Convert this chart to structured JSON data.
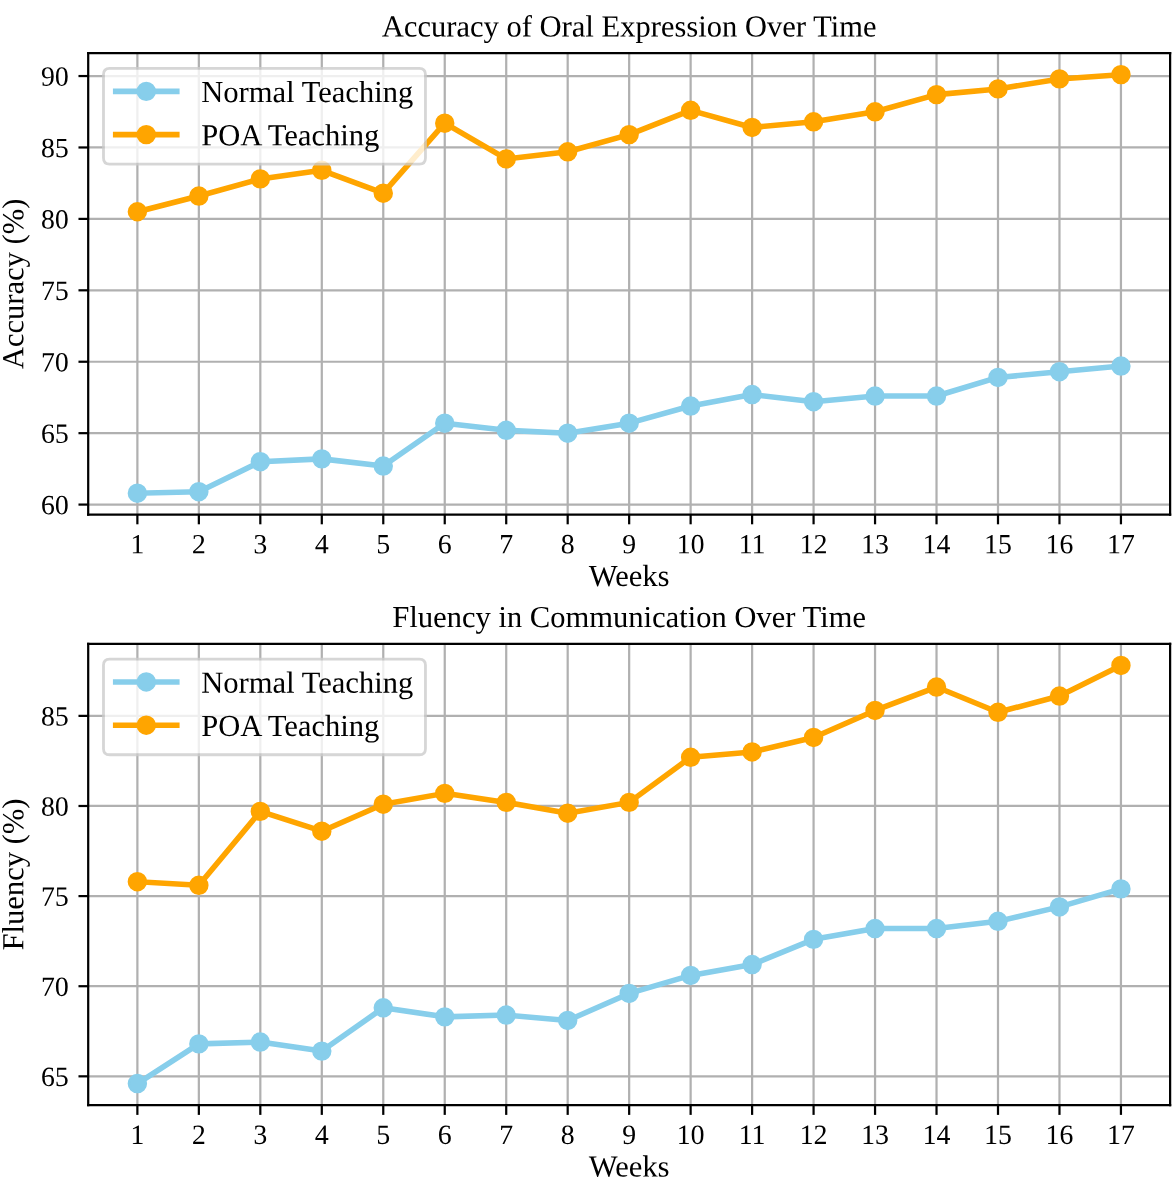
{
  "chart_data": [
    {
      "type": "line",
      "title": "Accuracy of Oral Expression Over Time",
      "xlabel": "Weeks",
      "ylabel": "Accuracy (%)",
      "x": [
        1,
        2,
        3,
        4,
        5,
        6,
        7,
        8,
        9,
        10,
        11,
        12,
        13,
        14,
        15,
        16,
        17
      ],
      "series": [
        {
          "name": "Normal Teaching",
          "color": "#87ceeb",
          "values": [
            60.8,
            60.9,
            63.0,
            63.2,
            62.7,
            65.7,
            65.2,
            65.0,
            65.7,
            66.9,
            67.7,
            67.2,
            67.6,
            67.6,
            68.9,
            69.3,
            69.7
          ]
        },
        {
          "name": "POA Teaching",
          "color": "#ffa500",
          "values": [
            80.5,
            81.6,
            82.8,
            83.4,
            81.8,
            86.7,
            84.2,
            84.7,
            85.9,
            87.6,
            86.4,
            86.8,
            87.5,
            88.7,
            89.1,
            89.8,
            90.1
          ]
        }
      ],
      "xlim": [
        0.2,
        17.8
      ],
      "xticks": [
        1,
        2,
        3,
        4,
        5,
        6,
        7,
        8,
        9,
        10,
        11,
        12,
        13,
        14,
        15,
        16,
        17
      ],
      "ylim": [
        59.3,
        91.6
      ],
      "yticks": [
        60,
        65,
        70,
        75,
        80,
        85,
        90
      ],
      "grid": true,
      "legend": "top left",
      "marker": "circle",
      "line_style": "solid"
    },
    {
      "type": "line",
      "title": "Fluency in Communication Over Time",
      "xlabel": "Weeks",
      "ylabel": "Fluency (%)",
      "x": [
        1,
        2,
        3,
        4,
        5,
        6,
        7,
        8,
        9,
        10,
        11,
        12,
        13,
        14,
        15,
        16,
        17
      ],
      "series": [
        {
          "name": "Normal Teaching",
          "color": "#87ceeb",
          "values": [
            64.6,
            66.8,
            66.9,
            66.4,
            68.8,
            68.3,
            68.4,
            68.1,
            69.6,
            70.6,
            71.2,
            72.6,
            73.2,
            73.2,
            73.6,
            74.4,
            75.4
          ]
        },
        {
          "name": "POA Teaching",
          "color": "#ffa500",
          "values": [
            75.8,
            75.6,
            79.7,
            78.6,
            80.1,
            80.7,
            80.2,
            79.6,
            80.2,
            82.7,
            83.0,
            83.8,
            85.3,
            86.6,
            85.2,
            86.1,
            87.8
          ]
        }
      ],
      "xlim": [
        0.2,
        17.8
      ],
      "xticks": [
        1,
        2,
        3,
        4,
        5,
        6,
        7,
        8,
        9,
        10,
        11,
        12,
        13,
        14,
        15,
        16,
        17
      ],
      "ylim": [
        63.4,
        89.0
      ],
      "yticks": [
        65,
        70,
        75,
        80,
        85
      ],
      "grid": true,
      "legend": "top left",
      "marker": "circle",
      "line_style": "solid"
    }
  ]
}
